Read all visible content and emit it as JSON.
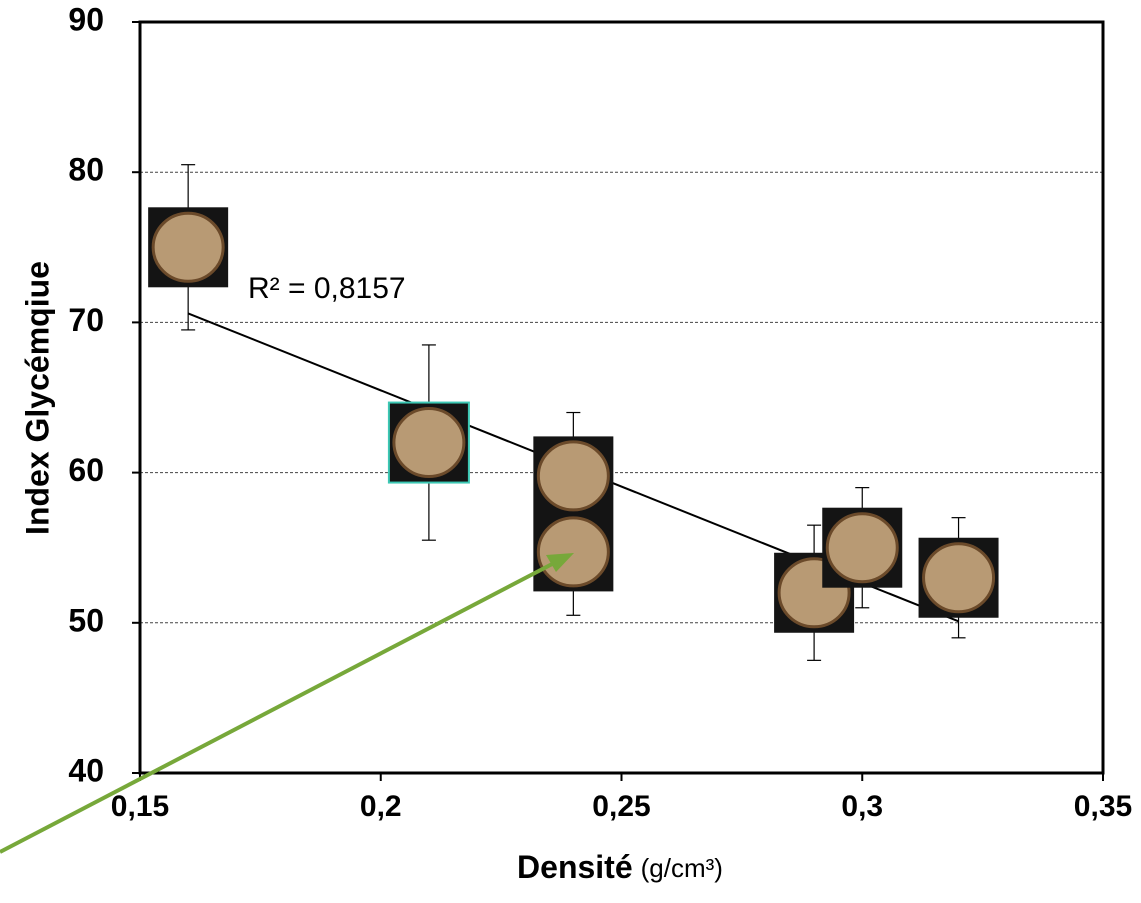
{
  "chart_data": {
    "type": "scatter",
    "x_label": "Densité",
    "x_unit": "(g/cm³)",
    "y_label": "Index Glycémqiue",
    "x": [
      0.16,
      0.21,
      0.24,
      0.29,
      0.3,
      0.32
    ],
    "values": [
      75,
      62,
      57.25,
      52,
      55,
      53
    ],
    "errors": [
      5.5,
      6.5,
      6.75,
      4.5,
      4,
      4
    ],
    "color": "#000000",
    "trendline": {
      "x": [
        0.16,
        0.32
      ],
      "y": [
        70.6,
        50.1
      ],
      "label": "R² = 0,8157"
    },
    "xlim": [
      0.15,
      0.35
    ],
    "xticks": [
      {
        "value": 0.15,
        "label": "0,15"
      },
      {
        "value": 0.2,
        "label": "0,2"
      },
      {
        "value": 0.25,
        "label": "0,25"
      },
      {
        "value": 0.3,
        "label": "0,3"
      },
      {
        "value": 0.35,
        "label": "0,35"
      }
    ],
    "ylim": [
      40,
      90
    ],
    "yticks": [
      40,
      50,
      60,
      70,
      80,
      90
    ],
    "grid": true
  }
}
